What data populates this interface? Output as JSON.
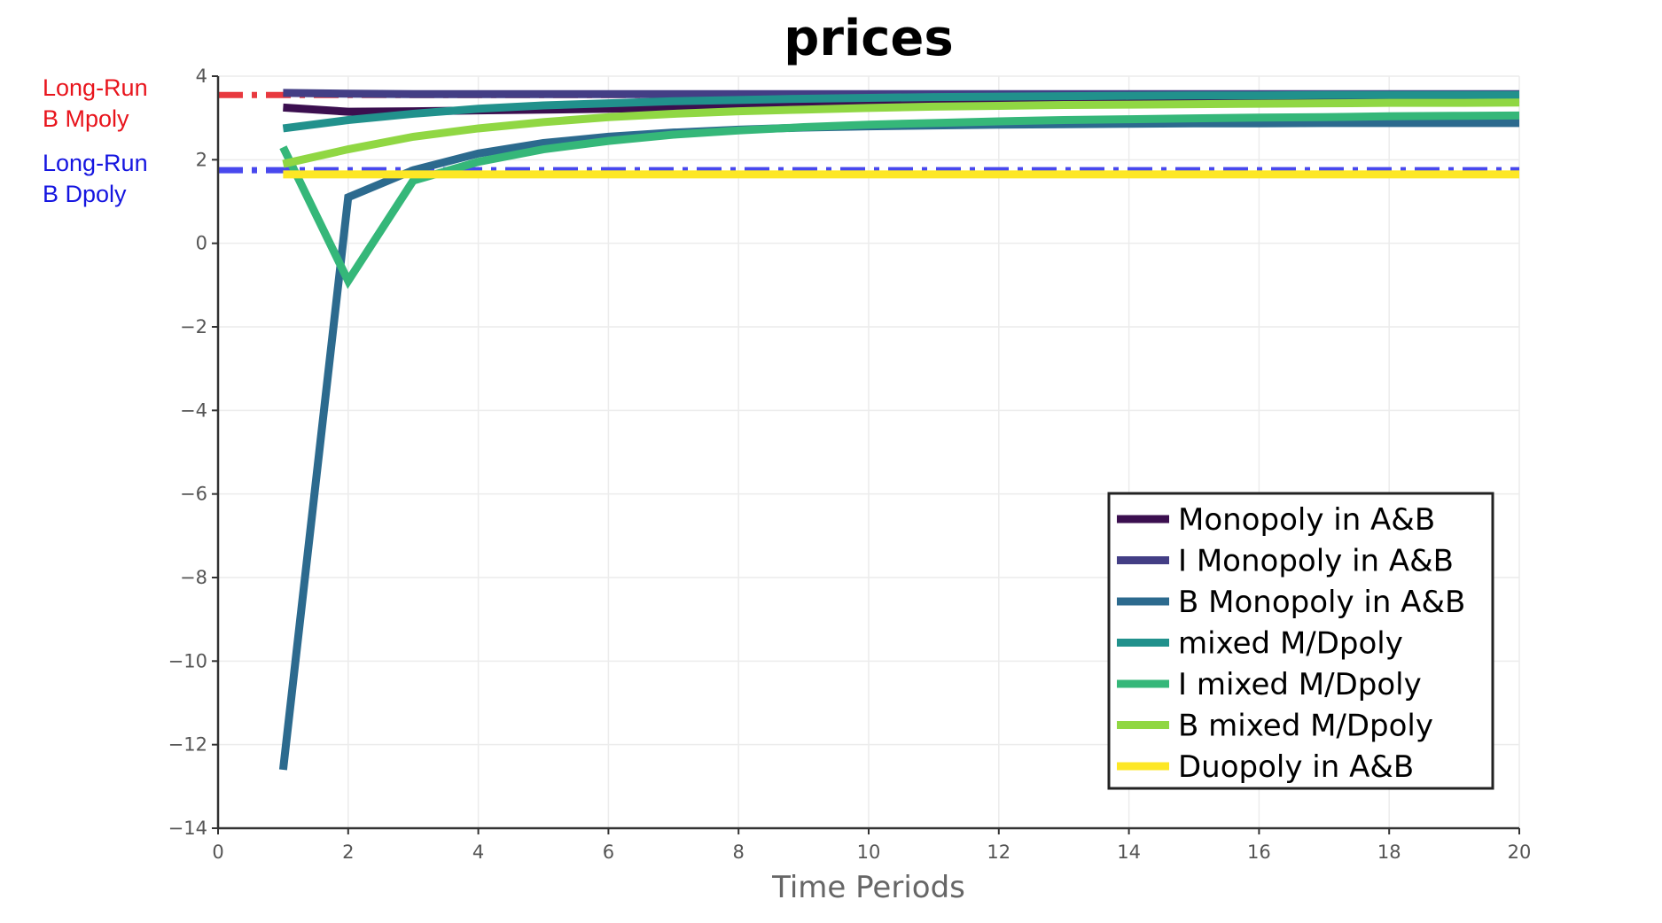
{
  "chart_data": {
    "type": "line",
    "title": "prices",
    "xlabel": "Time Periods",
    "ylabel": "",
    "xlim": [
      0,
      20
    ],
    "ylim": [
      -14,
      4
    ],
    "xticks": [
      0,
      2,
      4,
      6,
      8,
      10,
      12,
      14,
      16,
      18,
      20
    ],
    "xtick_labels": [
      "0",
      "2",
      "4",
      "6",
      "8",
      "10",
      "12",
      "14",
      "16",
      "18",
      "20"
    ],
    "yticks": [
      4,
      2,
      0,
      -2,
      -4,
      -6,
      -8,
      -10,
      -12,
      -14
    ],
    "ytick_labels": [
      "4",
      "2",
      "0",
      "−2",
      "−4",
      "−6",
      "−8",
      "−10",
      "−12",
      "−14"
    ],
    "grid": true,
    "legend_position": "bottom-right",
    "reference_lines": [
      {
        "label_lines": [
          "Long-Run",
          "B Mpoly"
        ],
        "y": 3.55,
        "color": "#e8393f",
        "label_color": "#e8141c"
      },
      {
        "label_lines": [
          "Long-Run",
          "B Dpoly"
        ],
        "y": 1.75,
        "color": "#4848ee",
        "label_color": "#1515e0"
      }
    ],
    "x": [
      1,
      2,
      3,
      4,
      5,
      6,
      7,
      8,
      9,
      10,
      11,
      12,
      13,
      14,
      15,
      16,
      17,
      18,
      19,
      20
    ],
    "series": [
      {
        "name": "Monopoly in A&B",
        "color": "#3b0f4f",
        "values": [
          3.25,
          3.15,
          3.16,
          3.18,
          3.2,
          3.22,
          3.24,
          3.26,
          3.28,
          3.3,
          3.32,
          3.34,
          3.36,
          3.38,
          3.4,
          3.42,
          3.43,
          3.44,
          3.45,
          3.46
        ]
      },
      {
        "name": "I Monopoly in A&B",
        "color": "#433e85",
        "values": [
          3.6,
          3.58,
          3.57,
          3.57,
          3.57,
          3.57,
          3.57,
          3.57,
          3.57,
          3.57,
          3.57,
          3.57,
          3.57,
          3.57,
          3.57,
          3.57,
          3.57,
          3.57,
          3.57,
          3.57
        ]
      },
      {
        "name": "B Monopoly in A&B",
        "color": "#2c6a8e",
        "values": [
          -12.6,
          1.1,
          1.75,
          2.15,
          2.4,
          2.55,
          2.65,
          2.72,
          2.77,
          2.8,
          2.82,
          2.84,
          2.85,
          2.86,
          2.87,
          2.87,
          2.88,
          2.88,
          2.88,
          2.88
        ]
      },
      {
        "name": "mixed M/Dpoly",
        "color": "#21918c",
        "values": [
          2.75,
          2.95,
          3.1,
          3.22,
          3.3,
          3.35,
          3.4,
          3.43,
          3.46,
          3.48,
          3.5,
          3.51,
          3.52,
          3.53,
          3.54,
          3.54,
          3.55,
          3.55,
          3.55,
          3.55
        ]
      },
      {
        "name": "I mixed M/Dpoly",
        "color": "#35b779",
        "values": [
          2.3,
          -0.9,
          1.5,
          1.95,
          2.25,
          2.45,
          2.6,
          2.7,
          2.78,
          2.84,
          2.88,
          2.92,
          2.95,
          2.97,
          2.99,
          3.01,
          3.02,
          3.04,
          3.05,
          3.06
        ]
      },
      {
        "name": "B mixed M/Dpoly",
        "color": "#90d743",
        "values": [
          1.9,
          2.25,
          2.55,
          2.75,
          2.9,
          3.02,
          3.1,
          3.16,
          3.2,
          3.24,
          3.27,
          3.29,
          3.31,
          3.32,
          3.33,
          3.34,
          3.35,
          3.36,
          3.36,
          3.37
        ]
      },
      {
        "name": "Duopoly in A&B",
        "color": "#fde725",
        "values": [
          1.65,
          1.65,
          1.65,
          1.65,
          1.65,
          1.65,
          1.65,
          1.65,
          1.65,
          1.65,
          1.65,
          1.65,
          1.65,
          1.65,
          1.65,
          1.65,
          1.65,
          1.65,
          1.65,
          1.65
        ]
      }
    ]
  }
}
